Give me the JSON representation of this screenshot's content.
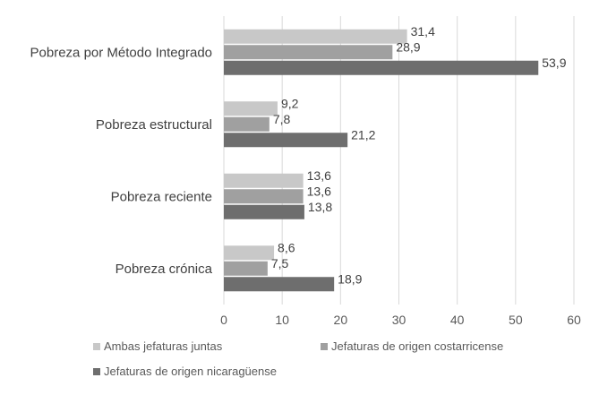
{
  "chart_data": {
    "type": "bar",
    "orientation": "horizontal",
    "categories": [
      "Pobreza por Método Integrado",
      "Pobreza estructural",
      "Pobreza reciente",
      "Pobreza crónica"
    ],
    "series": [
      {
        "name": "Ambas jefaturas juntas",
        "color": "#c8c8c8",
        "values": [
          31.4,
          9.2,
          13.6,
          8.6
        ],
        "labels": [
          "31,4",
          "9,2",
          "13,6",
          "8,6"
        ]
      },
      {
        "name": "Jefaturas de origen costarricense",
        "color": "#a0a0a0",
        "values": [
          28.9,
          7.8,
          13.6,
          7.5
        ],
        "labels": [
          "28,9",
          "7,8",
          "13,6",
          "7,5"
        ]
      },
      {
        "name": "Jefaturas de origen nicaragüense",
        "color": "#6e6e6e",
        "values": [
          53.9,
          21.2,
          13.8,
          18.9
        ],
        "labels": [
          "53,9",
          "21,2",
          "13,8",
          "18,9"
        ]
      }
    ],
    "xlim": [
      0,
      60
    ],
    "xticks": [
      0,
      10,
      20,
      30,
      40,
      50,
      60
    ],
    "grid": "vertical",
    "legend_position": "bottom",
    "title": "",
    "xlabel": "",
    "ylabel": ""
  }
}
